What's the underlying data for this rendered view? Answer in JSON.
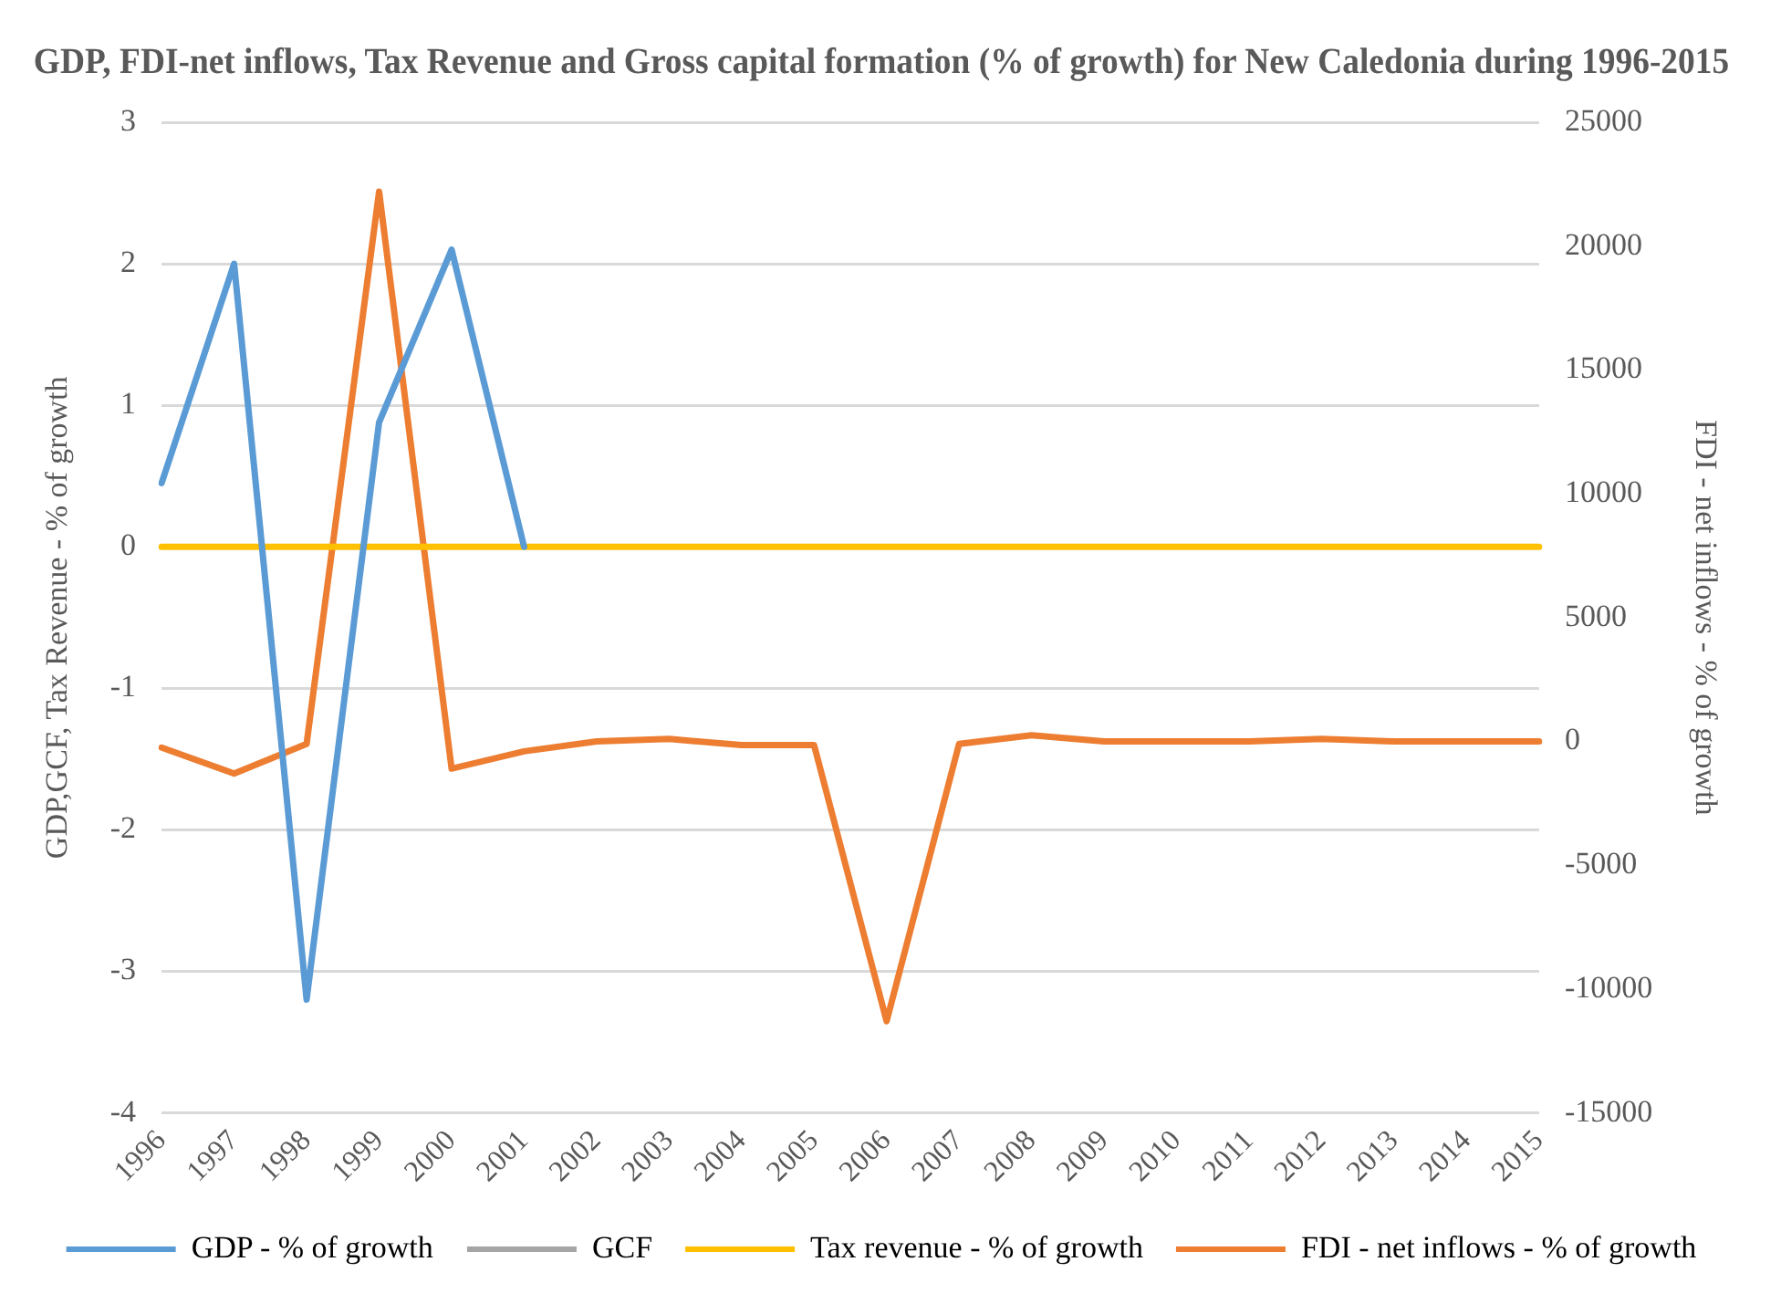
{
  "chart_data": {
    "type": "line",
    "title": "GDP, FDI-net inflows, Tax Revenue and Gross capital formation (% of growth) for New Caledonia during 1996-2015",
    "categories": [
      "1996",
      "1997",
      "1998",
      "1999",
      "2000",
      "2001",
      "2002",
      "2003",
      "2004",
      "2005",
      "2006",
      "2007",
      "2008",
      "2009",
      "2010",
      "2011",
      "2012",
      "2013",
      "2014",
      "2015"
    ],
    "series": [
      {
        "name": "GDP - % of growth",
        "color": "#5b9bd5",
        "values": [
          0.45,
          2.0,
          -3.2,
          0.88,
          2.1,
          0,
          null,
          null,
          null,
          null,
          null,
          null,
          null,
          null,
          null,
          null,
          null,
          null,
          null,
          null
        ]
      },
      {
        "name": "GCF",
        "color": "#a5a5a5",
        "values": [
          null,
          null,
          null,
          null,
          null,
          null,
          null,
          null,
          null,
          null,
          null,
          null,
          null,
          null,
          null,
          null,
          null,
          null,
          null,
          null
        ]
      },
      {
        "name": "Tax revenue - % of growth",
        "color": "#ffc000",
        "values": [
          0,
          0,
          0,
          0,
          0,
          0,
          0,
          0,
          0,
          0,
          0,
          0,
          0,
          0,
          0,
          0,
          0,
          0,
          0,
          0
        ]
      },
      {
        "name": "FDI - net inflows - % of growth",
        "color": "#ed7d31",
        "axis": "y2",
        "values": [
          -250,
          -1300,
          -100,
          22200,
          -1100,
          -400,
          0,
          100,
          -150,
          -150,
          -11300,
          -100,
          250,
          0,
          0,
          0,
          100,
          0,
          0,
          0
        ]
      }
    ],
    "ylabel": "GDP,GCF, Tax Revenue - % of growth",
    "y2label": "FDI - net inflows - % of growth",
    "ylim": [
      -4,
      3
    ],
    "yticks": [
      -4,
      -3,
      -2,
      -1,
      0,
      1,
      2,
      3
    ],
    "y2lim": [
      -15000,
      25000
    ],
    "y2ticks": [
      -15000,
      -10000,
      -5000,
      0,
      5000,
      10000,
      15000,
      20000,
      25000
    ],
    "grid": "y",
    "legend": "bottom",
    "marker": "none",
    "line_style": "solid"
  }
}
